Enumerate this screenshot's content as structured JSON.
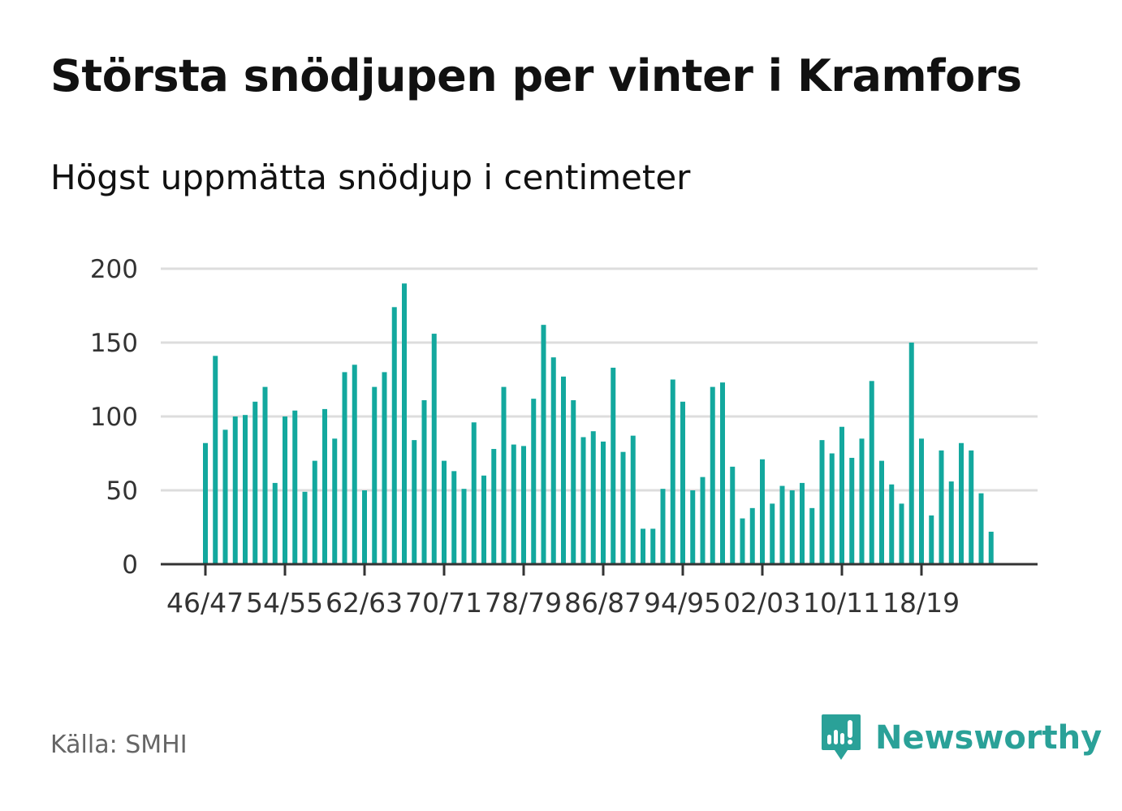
{
  "title": "Största snödjupen per vinter i Kramfors",
  "subtitle": "Högst uppmätta snödjup i centimeter",
  "source": "Källa: SMHI",
  "brand": {
    "name": "Newsworthy",
    "icon": "newsworthy-logo-icon",
    "color": "#2aa198"
  },
  "chart_data": {
    "type": "bar",
    "title": "Största snödjupen per vinter i Kramfors",
    "subtitle": "Högst uppmätta snödjup i centimeter",
    "xlabel": "",
    "ylabel": "",
    "ylim": [
      0,
      200
    ],
    "yticks": [
      0,
      50,
      100,
      150,
      200
    ],
    "grid": true,
    "bar_color": "#13a89e",
    "categories": [
      "46/47",
      "47/48",
      "48/49",
      "49/50",
      "50/51",
      "51/52",
      "52/53",
      "53/54",
      "54/55",
      "55/56",
      "56/57",
      "57/58",
      "58/59",
      "59/60",
      "60/61",
      "61/62",
      "62/63",
      "63/64",
      "64/65",
      "65/66",
      "66/67",
      "67/68",
      "68/69",
      "69/70",
      "70/71",
      "71/72",
      "72/73",
      "73/74",
      "74/75",
      "75/76",
      "76/77",
      "77/78",
      "78/79",
      "79/80",
      "80/81",
      "81/82",
      "82/83",
      "83/84",
      "84/85",
      "85/86",
      "86/87",
      "87/88",
      "88/89",
      "89/90",
      "90/91",
      "91/92",
      "92/93",
      "93/94",
      "94/95",
      "95/96",
      "96/97",
      "97/98",
      "98/99",
      "99/00",
      "00/01",
      "01/02",
      "02/03",
      "03/04",
      "04/05",
      "05/06",
      "06/07",
      "07/08",
      "08/09",
      "09/10",
      "10/11",
      "11/12",
      "12/13",
      "13/14",
      "14/15",
      "15/16",
      "16/17",
      "17/18",
      "18/19",
      "19/20",
      "20/21",
      "21/22",
      "22/23",
      "23/24",
      "24/25",
      "25/26"
    ],
    "tick_labels": [
      {
        "index": 0,
        "label": "46/47"
      },
      {
        "index": 8,
        "label": "54/55"
      },
      {
        "index": 16,
        "label": "62/63"
      },
      {
        "index": 24,
        "label": "70/71"
      },
      {
        "index": 32,
        "label": "78/79"
      },
      {
        "index": 40,
        "label": "86/87"
      },
      {
        "index": 48,
        "label": "94/95"
      },
      {
        "index": 56,
        "label": "02/03"
      },
      {
        "index": 64,
        "label": "10/11"
      },
      {
        "index": 72,
        "label": "18/19"
      }
    ],
    "values": [
      82,
      141,
      91,
      100,
      101,
      110,
      120,
      55,
      100,
      104,
      49,
      70,
      105,
      85,
      130,
      135,
      50,
      120,
      130,
      174,
      190,
      84,
      111,
      156,
      70,
      63,
      51,
      96,
      60,
      78,
      120,
      81,
      80,
      112,
      162,
      140,
      127,
      111,
      86,
      90,
      83,
      133,
      76,
      87,
      24,
      24,
      51,
      125,
      110,
      50,
      59,
      120,
      123,
      66,
      31,
      38,
      71,
      41,
      53,
      50,
      55,
      38,
      84,
      75,
      93,
      72,
      85,
      124,
      70,
      54,
      41,
      150,
      85,
      33,
      77,
      56,
      82,
      77,
      48,
      22
    ]
  }
}
